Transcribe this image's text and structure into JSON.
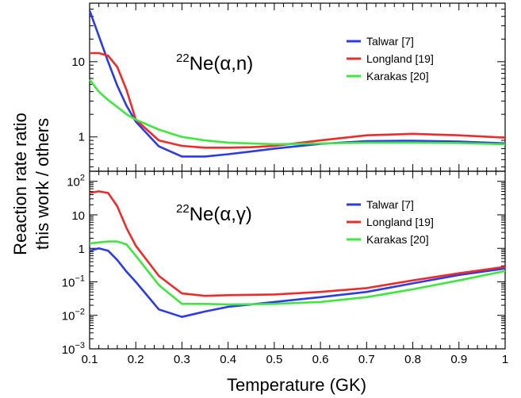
{
  "figure": {
    "xlabel": "Temperature (GK)",
    "ylabel_line1": "Reaction rate ratio",
    "ylabel_line2": "this work / others"
  },
  "colors": {
    "talwar": "#2b3be6",
    "longland": "#ee2b2b",
    "karakas": "#3ee83e"
  },
  "chart_data": [
    {
      "type": "line",
      "panel": "top",
      "label": {
        "mass": "22",
        "text": "Ne(α,n)"
      },
      "xlim": [
        0.1,
        1.0
      ],
      "ylim": [
        0.35,
        60
      ],
      "yscale": "log",
      "xticks": [
        "0.1",
        "0.2",
        "0.3",
        "0.4",
        "0.5",
        "0.6",
        "0.7",
        "0.8",
        "0.9",
        "1"
      ],
      "yticks": [
        {
          "v": 1,
          "label": "1"
        },
        {
          "v": 10,
          "label": "10"
        }
      ],
      "legend_position": "top-right",
      "series": [
        {
          "name": "Talwar [7]",
          "color": "#2b3be6",
          "x": [
            0.1,
            0.12,
            0.14,
            0.16,
            0.18,
            0.2,
            0.25,
            0.3,
            0.35,
            0.4,
            0.45,
            0.5,
            0.6,
            0.7,
            0.8,
            0.9,
            1.0
          ],
          "y": [
            48,
            22,
            10,
            4.8,
            2.6,
            1.6,
            0.75,
            0.55,
            0.55,
            0.59,
            0.64,
            0.7,
            0.81,
            0.88,
            0.89,
            0.87,
            0.82
          ]
        },
        {
          "name": "Longland [19]",
          "color": "#ee2b2b",
          "x": [
            0.1,
            0.12,
            0.14,
            0.16,
            0.18,
            0.2,
            0.25,
            0.3,
            0.35,
            0.4,
            0.45,
            0.5,
            0.6,
            0.7,
            0.8,
            0.9,
            1.0
          ],
          "y": [
            13,
            13,
            12,
            8.5,
            4.2,
            1.7,
            0.9,
            0.76,
            0.72,
            0.72,
            0.73,
            0.76,
            0.9,
            1.05,
            1.1,
            1.05,
            0.98
          ]
        },
        {
          "name": "Karakas [20]",
          "color": "#3ee83e",
          "x": [
            0.1,
            0.12,
            0.14,
            0.16,
            0.18,
            0.2,
            0.25,
            0.3,
            0.35,
            0.4,
            0.5,
            0.6,
            0.7,
            0.8,
            0.9,
            1.0
          ],
          "y": [
            5.8,
            4.0,
            3.1,
            2.5,
            2.0,
            1.7,
            1.25,
            1.0,
            0.9,
            0.84,
            0.8,
            0.82,
            0.84,
            0.84,
            0.83,
            0.8
          ]
        }
      ]
    },
    {
      "type": "line",
      "panel": "bottom",
      "label": {
        "mass": "22",
        "text": "Ne(α,γ)"
      },
      "xlim": [
        0.1,
        1.0
      ],
      "ylim": [
        0.001,
        200
      ],
      "yscale": "log",
      "xticks": [
        "0.1",
        "0.2",
        "0.3",
        "0.4",
        "0.5",
        "0.6",
        "0.7",
        "0.8",
        "0.9",
        "1"
      ],
      "yticks": [
        {
          "v": 0.001,
          "base": "10",
          "exp": "−3"
        },
        {
          "v": 0.01,
          "base": "10",
          "exp": "−2"
        },
        {
          "v": 0.1,
          "base": "10",
          "exp": "−1"
        },
        {
          "v": 1,
          "base": "1",
          "exp": ""
        },
        {
          "v": 10,
          "base": "10",
          "exp": ""
        },
        {
          "v": 100,
          "base": "10",
          "exp": "2"
        }
      ],
      "legend_position": "top-right",
      "series": [
        {
          "name": "Talwar [7]",
          "color": "#2b3be6",
          "x": [
            0.1,
            0.12,
            0.14,
            0.16,
            0.18,
            0.2,
            0.25,
            0.3,
            0.35,
            0.4,
            0.5,
            0.6,
            0.7,
            0.8,
            0.9,
            1.0
          ],
          "y": [
            0.85,
            1.0,
            0.85,
            0.45,
            0.2,
            0.1,
            0.015,
            0.009,
            0.013,
            0.018,
            0.025,
            0.035,
            0.05,
            0.09,
            0.16,
            0.25
          ]
        },
        {
          "name": "Longland [19]",
          "color": "#ee2b2b",
          "x": [
            0.1,
            0.12,
            0.14,
            0.16,
            0.18,
            0.2,
            0.25,
            0.3,
            0.35,
            0.4,
            0.5,
            0.6,
            0.7,
            0.8,
            0.9,
            1.0
          ],
          "y": [
            45,
            50,
            45,
            18,
            4,
            1.2,
            0.15,
            0.045,
            0.038,
            0.04,
            0.042,
            0.05,
            0.065,
            0.11,
            0.18,
            0.28
          ]
        },
        {
          "name": "Karakas [20]",
          "color": "#3ee83e",
          "x": [
            0.1,
            0.12,
            0.14,
            0.16,
            0.18,
            0.2,
            0.25,
            0.3,
            0.35,
            0.4,
            0.5,
            0.6,
            0.7,
            0.8,
            0.9,
            1.0
          ],
          "y": [
            1.4,
            1.5,
            1.6,
            1.6,
            1.3,
            0.6,
            0.08,
            0.022,
            0.022,
            0.021,
            0.022,
            0.025,
            0.035,
            0.06,
            0.11,
            0.21
          ]
        }
      ]
    }
  ]
}
